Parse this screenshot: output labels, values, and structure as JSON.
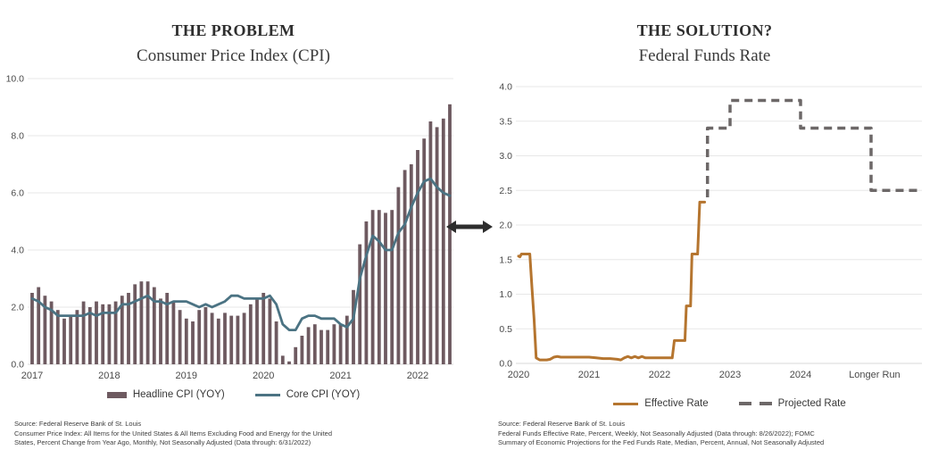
{
  "page": {
    "background": "#ffffff"
  },
  "arrow": {
    "name": "double-headed-arrow",
    "color": "#2d2d2d"
  },
  "left_panel": {
    "kicker": "THE PROBLEM",
    "title": "Consumer Price Index (CPI)",
    "legend": [
      {
        "label": "Headline CPI (YOY)",
        "swatch": "bar",
        "color": "#6e5a60"
      },
      {
        "label": "Core CPI (YOY)",
        "swatch": "line",
        "color": "#4b7383"
      }
    ],
    "source_lines": [
      "Source: Federal Reserve Bank of St. Louis",
      "Consumer Price Index: All Items for the United States & All Items Excluding Food and Energy for the United",
      "States, Percent Change from Year Ago, Monthly, Not Seasonally Adjusted (Data through: 6/31/2022)"
    ]
  },
  "right_panel": {
    "kicker": "THE SOLUTION?",
    "title": "Federal Funds Rate",
    "legend": [
      {
        "label": "Effective Rate",
        "swatch": "line",
        "color": "#b5752f"
      },
      {
        "label": "Projected Rate",
        "swatch": "dash",
        "color": "#6d6868"
      }
    ],
    "source_lines": [
      "Source: Federal Reserve Bank of St. Louis",
      "Federal Funds Effective Rate, Percent, Weekly, Not Seasonally Adjusted (Data through: 8/26/2022); FOMC",
      "Summary of Economic Projections for the Fed Funds Rate, Median, Percent, Annual, Not Seasonally Adjusted"
    ]
  },
  "chart_data": [
    {
      "type": "bar",
      "title": "Consumer Price Index (CPI)",
      "subtitle": "THE PROBLEM",
      "frequency": "monthly",
      "categories": [
        "2017-01",
        "2017-02",
        "2017-03",
        "2017-04",
        "2017-05",
        "2017-06",
        "2017-07",
        "2017-08",
        "2017-09",
        "2017-10",
        "2017-11",
        "2017-12",
        "2018-01",
        "2018-02",
        "2018-03",
        "2018-04",
        "2018-05",
        "2018-06",
        "2018-07",
        "2018-08",
        "2018-09",
        "2018-10",
        "2018-11",
        "2018-12",
        "2019-01",
        "2019-02",
        "2019-03",
        "2019-04",
        "2019-05",
        "2019-06",
        "2019-07",
        "2019-08",
        "2019-09",
        "2019-10",
        "2019-11",
        "2019-12",
        "2020-01",
        "2020-02",
        "2020-03",
        "2020-04",
        "2020-05",
        "2020-06",
        "2020-07",
        "2020-08",
        "2020-09",
        "2020-10",
        "2020-11",
        "2020-12",
        "2021-01",
        "2021-02",
        "2021-03",
        "2021-04",
        "2021-05",
        "2021-06",
        "2021-07",
        "2021-08",
        "2021-09",
        "2021-10",
        "2021-11",
        "2021-12",
        "2022-01",
        "2022-02",
        "2022-03",
        "2022-04",
        "2022-05",
        "2022-06"
      ],
      "series": [
        {
          "name": "Headline CPI (YOY)",
          "type": "bar",
          "color": "#6e5a60",
          "values": [
            2.5,
            2.7,
            2.4,
            2.2,
            1.9,
            1.6,
            1.7,
            1.9,
            2.2,
            2.0,
            2.2,
            2.1,
            2.1,
            2.2,
            2.4,
            2.5,
            2.8,
            2.9,
            2.9,
            2.7,
            2.3,
            2.5,
            2.2,
            1.9,
            1.6,
            1.5,
            1.9,
            2.0,
            1.8,
            1.6,
            1.8,
            1.7,
            1.7,
            1.8,
            2.1,
            2.3,
            2.5,
            2.3,
            1.5,
            0.3,
            0.1,
            0.6,
            1.0,
            1.3,
            1.4,
            1.2,
            1.2,
            1.4,
            1.4,
            1.7,
            2.6,
            4.2,
            5.0,
            5.4,
            5.4,
            5.3,
            5.4,
            6.2,
            6.8,
            7.0,
            7.5,
            7.9,
            8.5,
            8.3,
            8.6,
            9.1
          ]
        },
        {
          "name": "Core CPI (YOY)",
          "type": "line",
          "color": "#4b7383",
          "values": [
            2.3,
            2.2,
            2.0,
            1.9,
            1.7,
            1.7,
            1.7,
            1.7,
            1.7,
            1.8,
            1.7,
            1.8,
            1.8,
            1.8,
            2.1,
            2.1,
            2.2,
            2.3,
            2.4,
            2.2,
            2.2,
            2.1,
            2.2,
            2.2,
            2.2,
            2.1,
            2.0,
            2.1,
            2.0,
            2.1,
            2.2,
            2.4,
            2.4,
            2.3,
            2.3,
            2.3,
            2.3,
            2.4,
            2.1,
            1.4,
            1.2,
            1.2,
            1.6,
            1.7,
            1.7,
            1.6,
            1.6,
            1.6,
            1.4,
            1.3,
            1.6,
            3.0,
            3.8,
            4.5,
            4.3,
            4.0,
            4.0,
            4.6,
            4.9,
            5.5,
            6.0,
            6.4,
            6.5,
            6.2,
            6.0,
            5.9
          ]
        }
      ],
      "xlabel": "",
      "ylabel": "",
      "ylim": [
        0,
        10
      ],
      "ytick_step": 2,
      "xticks": [
        "2017",
        "2018",
        "2019",
        "2020",
        "2021",
        "2022"
      ],
      "grid": true,
      "legend_position": "bottom"
    },
    {
      "type": "line",
      "title": "Federal Funds Rate",
      "subtitle": "THE SOLUTION?",
      "series": [
        {
          "name": "Effective Rate",
          "style": "solid",
          "color": "#b5752f",
          "points": [
            [
              2020.0,
              1.55
            ],
            [
              2020.02,
              1.54
            ],
            [
              2020.04,
              1.58
            ],
            [
              2020.08,
              1.58
            ],
            [
              2020.12,
              1.58
            ],
            [
              2020.16,
              1.58
            ],
            [
              2020.19,
              1.1
            ],
            [
              2020.22,
              0.65
            ],
            [
              2020.25,
              0.08
            ],
            [
              2020.3,
              0.05
            ],
            [
              2020.35,
              0.05
            ],
            [
              2020.4,
              0.05
            ],
            [
              2020.45,
              0.06
            ],
            [
              2020.5,
              0.09
            ],
            [
              2020.55,
              0.1
            ],
            [
              2020.6,
              0.09
            ],
            [
              2020.7,
              0.09
            ],
            [
              2020.8,
              0.09
            ],
            [
              2020.9,
              0.09
            ],
            [
              2021.0,
              0.09
            ],
            [
              2021.1,
              0.08
            ],
            [
              2021.2,
              0.07
            ],
            [
              2021.3,
              0.07
            ],
            [
              2021.4,
              0.06
            ],
            [
              2021.45,
              0.05
            ],
            [
              2021.5,
              0.08
            ],
            [
              2021.55,
              0.1
            ],
            [
              2021.6,
              0.08
            ],
            [
              2021.65,
              0.1
            ],
            [
              2021.7,
              0.08
            ],
            [
              2021.75,
              0.1
            ],
            [
              2021.8,
              0.08
            ],
            [
              2021.85,
              0.08
            ],
            [
              2021.9,
              0.08
            ],
            [
              2022.0,
              0.08
            ],
            [
              2022.1,
              0.08
            ],
            [
              2022.18,
              0.08
            ],
            [
              2022.21,
              0.33
            ],
            [
              2022.3,
              0.33
            ],
            [
              2022.36,
              0.33
            ],
            [
              2022.38,
              0.83
            ],
            [
              2022.44,
              0.83
            ],
            [
              2022.46,
              1.58
            ],
            [
              2022.54,
              1.58
            ],
            [
              2022.57,
              2.33
            ],
            [
              2022.64,
              2.33
            ]
          ]
        },
        {
          "name": "Projected Rate",
          "style": "dashed",
          "color": "#6d6868",
          "points": [
            [
              2022.68,
              2.4
            ],
            [
              2022.68,
              3.4
            ],
            [
              2023.0,
              3.4
            ],
            [
              2023.0,
              3.8
            ],
            [
              2024.0,
              3.8
            ],
            [
              2024.0,
              3.4
            ],
            [
              2025.0,
              3.4
            ],
            [
              2025.0,
              2.5
            ],
            [
              2025.7,
              2.5
            ]
          ]
        }
      ],
      "projection_steps": {
        "2022": 3.4,
        "2023": 3.8,
        "2024": 3.4,
        "longer_run": 2.5
      },
      "xlim": [
        2019.93,
        2025.75
      ],
      "ylim": [
        0,
        4
      ],
      "ytick_step": 0.5,
      "xticks": [
        {
          "x": 2020,
          "label": "2020"
        },
        {
          "x": 2021,
          "label": "2021"
        },
        {
          "x": 2022,
          "label": "2022"
        },
        {
          "x": 2023,
          "label": "2023"
        },
        {
          "x": 2024,
          "label": "2024"
        },
        {
          "x": 2025.05,
          "label": "Longer Run"
        }
      ],
      "grid": true,
      "legend_position": "bottom"
    }
  ]
}
